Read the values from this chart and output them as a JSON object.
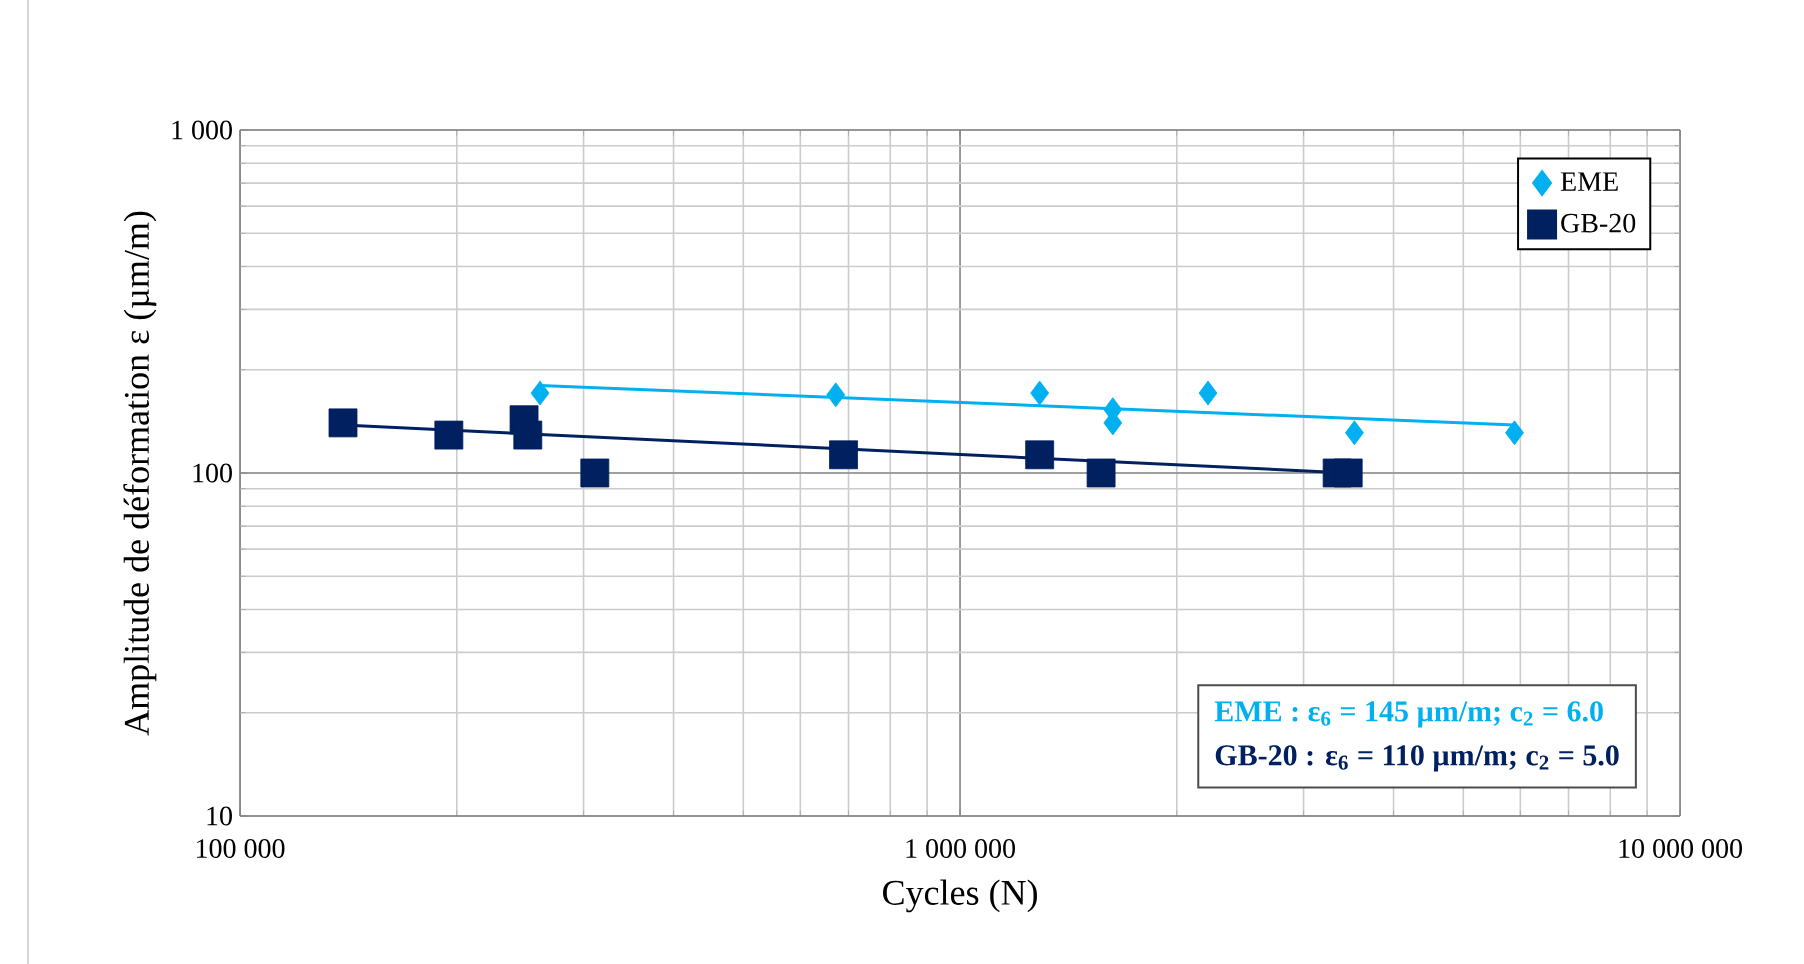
{
  "chart_data": {
    "type": "scatter",
    "xlabel": "Cycles (N)",
    "ylabel": "Amplitude de déformation ε (µm/m)",
    "log": "xy",
    "grid": true,
    "legend": "top right",
    "xlim": [
      100000,
      10000000
    ],
    "ylim": [
      10,
      1000
    ],
    "xticks": [
      {
        "value": 100000,
        "label": "100 000"
      },
      {
        "value": 1000000,
        "label": "1 000 000"
      },
      {
        "value": 10000000,
        "label": "10 000 000"
      }
    ],
    "yticks": [
      10,
      100,
      {
        "value": 1000,
        "label": "1 000"
      }
    ],
    "series": [
      {
        "name": "EME",
        "marker": "diamond",
        "color": "#00b0f0",
        "x": [
          261000,
          672000,
          1290000,
          1630000,
          1630000,
          2210000,
          3530000,
          5890000
        ],
        "values": [
          171,
          169,
          171,
          153,
          140,
          171,
          131,
          131
        ]
      },
      {
        "name": "GB-20",
        "marker": "square",
        "color": "#002060",
        "x": [
          139000,
          195000,
          248000,
          251000,
          311000,
          689000,
          1290000,
          1570000,
          3340000,
          3460000
        ],
        "values": [
          140,
          129,
          143,
          129,
          100,
          113,
          113,
          100,
          100,
          100
        ]
      },
      {
        "type": "line",
        "marker": "none",
        "color": "#00b0f0",
        "x": [
          261000,
          5890000
        ],
        "values": [
          180,
          138
        ]
      },
      {
        "type": "line",
        "marker": "none",
        "color": "#002060",
        "x": [
          139000,
          3460000
        ],
        "values": [
          138,
          100
        ]
      }
    ],
    "annotations": [
      "EME : ε$_{6}$ = 145 µm/m; c$_{2}$ = 6.0",
      "GB-20 : ε$_{6}$ = 110 µm/m; c$_{2}$ = 5.0"
    ]
  }
}
